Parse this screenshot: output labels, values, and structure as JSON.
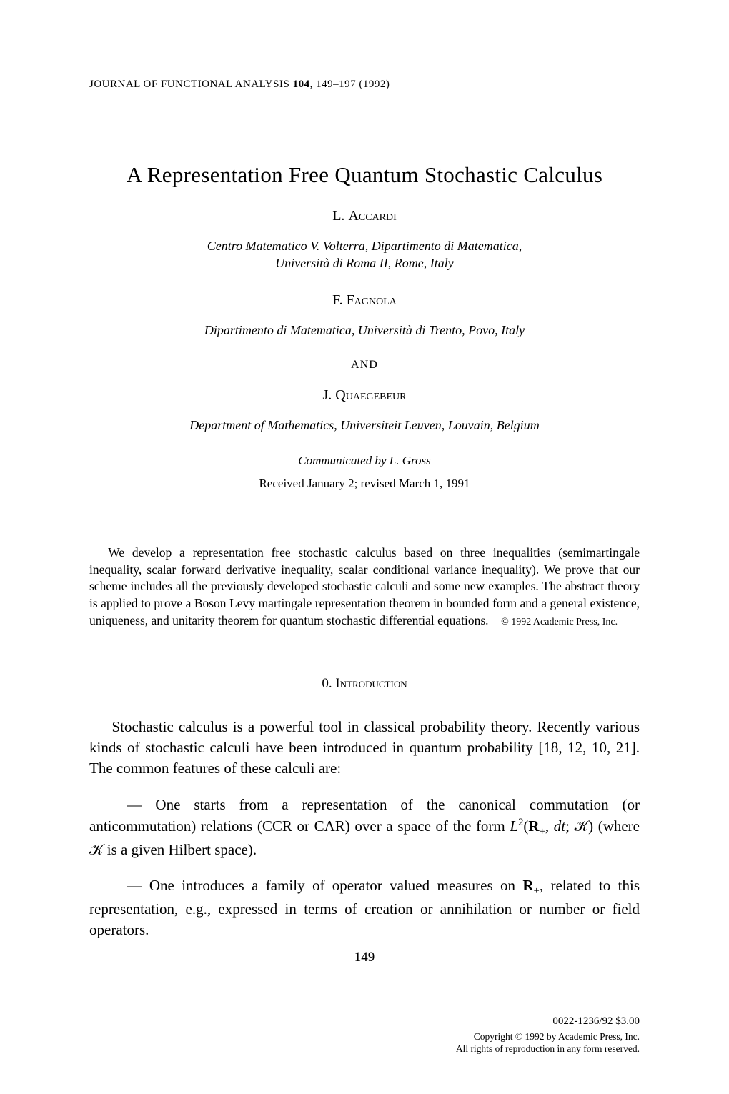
{
  "journal": {
    "name": "JOURNAL OF FUNCTIONAL ANALYSIS",
    "volume": "104",
    "pages": "149–197",
    "year": "(1992)"
  },
  "title": "A Representation Free Quantum Stochastic Calculus",
  "authors": [
    {
      "initial": "L.",
      "surname": "Accardi",
      "affiliation_line1": "Centro Matematico V. Volterra, Dipartimento di Matematica,",
      "affiliation_line2": "Università di Roma II, Rome, Italy"
    },
    {
      "initial": "F.",
      "surname": "Fagnola",
      "affiliation_line1": "Dipartimento di Matematica, Università di Trento, Povo, Italy",
      "affiliation_line2": ""
    },
    {
      "initial": "J.",
      "surname": "Quaegebeur",
      "affiliation_line1": "Department of Mathematics, Universiteit Leuven, Louvain, Belgium",
      "affiliation_line2": ""
    }
  ],
  "and_separator": "AND",
  "communicated": "Communicated by L. Gross",
  "received": "Received January 2; revised March 1, 1991",
  "abstract": {
    "text": "We develop a representation free stochastic calculus based on three inequalities (semimartingale inequality, scalar forward derivative inequality, scalar conditional variance inequality). We prove that our scheme includes all the previously developed stochastic calculi and some new examples. The abstract theory is applied to prove a Boson Levy martingale representation theorem in bounded form and a general existence, uniqueness, and unitarity theorem for quantum stochastic differential equations.",
    "copyright": "© 1992 Academic Press, Inc."
  },
  "section": {
    "number": "0.",
    "title": "Introduction"
  },
  "body": {
    "para1": "Stochastic calculus is a powerful tool in classical probability theory. Recently various kinds of stochastic calculi have been introduced in quantum probability [18, 12, 10, 21]. The common features of these calculi are:",
    "item1_prefix": "— One starts from a representation of the canonical commutation (or anticommutation) relations (CCR or CAR) over a space of the form ",
    "item1_math": "L²(𝐑₊, dt; 𝒦)",
    "item1_mid": " (where ",
    "item1_math2": "𝒦",
    "item1_suffix": " is a given Hilbert space).",
    "item2_prefix": "— One introduces a family of operator valued measures on ",
    "item2_math": "𝐑₊",
    "item2_suffix": ", related to this representation, e.g., expressed in terms of creation or annihilation or number or field operators."
  },
  "page_number": "149",
  "footer": {
    "issn": "0022-1236/92 $3.00",
    "copyright_line1": "Copyright © 1992 by Academic Press, Inc.",
    "copyright_line2": "All rights of reproduction in any form reserved."
  },
  "styles": {
    "body_font": "Times New Roman",
    "text_color": "#000000",
    "background_color": "#ffffff",
    "title_fontsize": 31,
    "author_fontsize": 20,
    "affiliation_fontsize": 18,
    "abstract_fontsize": 17.5,
    "body_fontsize": 21,
    "footer_fontsize": 13.5
  }
}
